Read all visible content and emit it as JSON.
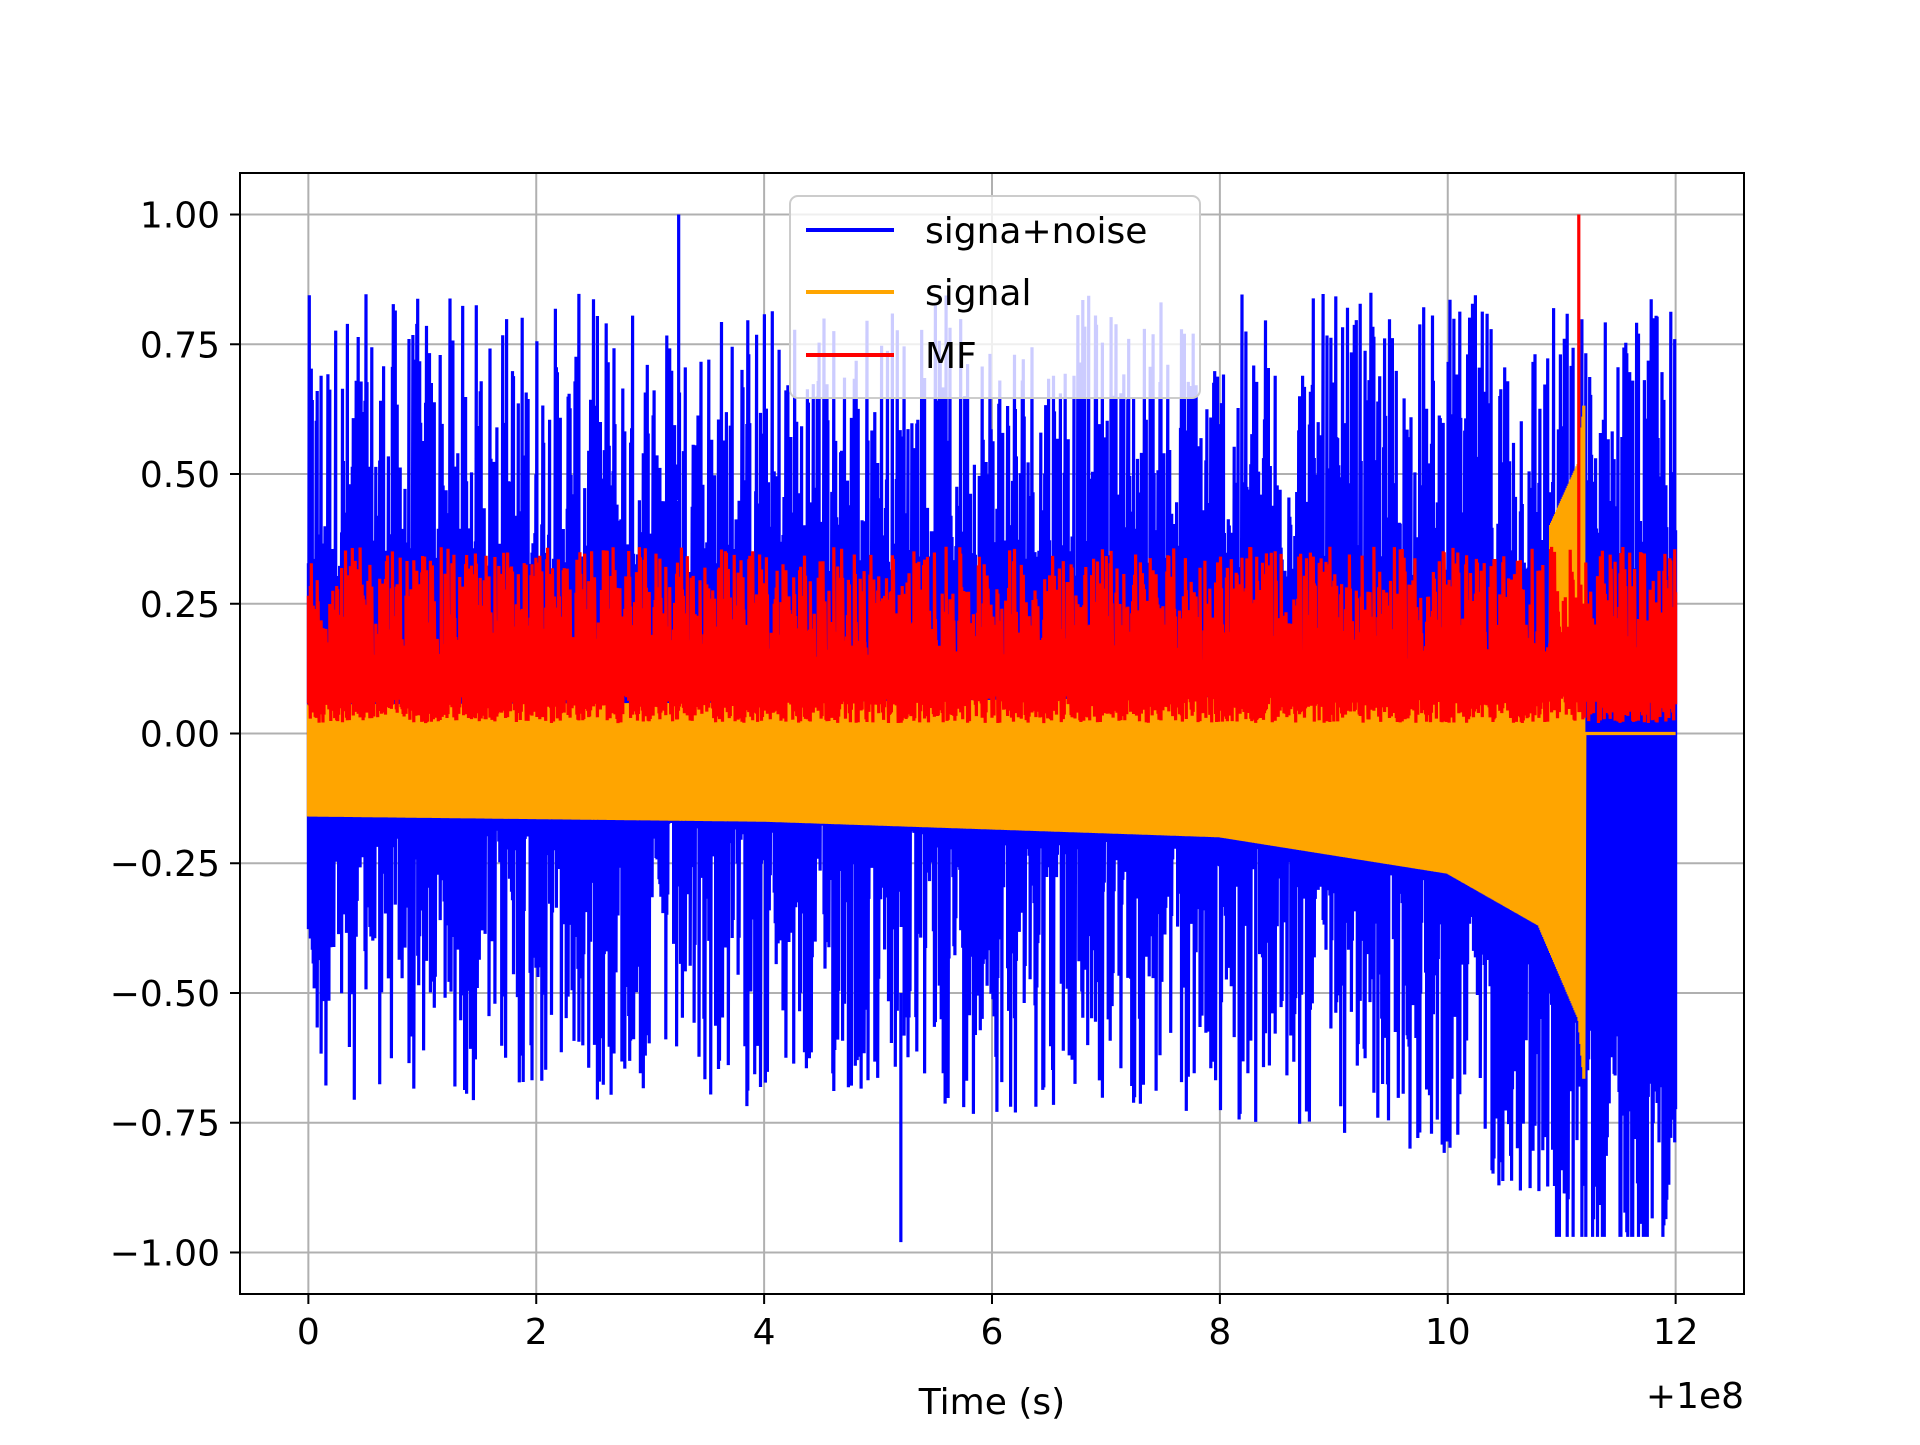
{
  "chart_data": {
    "type": "line",
    "title": "",
    "xlabel": "Time (s)",
    "ylabel": "",
    "x_offset_label": "+1e8",
    "xlim": [
      -0.6,
      12.6
    ],
    "ylim": [
      -1.08,
      1.08
    ],
    "xticks": [
      0,
      2,
      4,
      6,
      8,
      10,
      12
    ],
    "xtick_labels": [
      "0",
      "2",
      "4",
      "6",
      "8",
      "10",
      "12"
    ],
    "yticks": [
      -1.0,
      -0.75,
      -0.5,
      -0.25,
      0.0,
      0.25,
      0.5,
      0.75,
      1.0
    ],
    "ytick_labels": [
      "−1.00",
      "−0.75",
      "−0.50",
      "−0.25",
      "0.00",
      "0.25",
      "0.50",
      "0.75",
      "1.00"
    ],
    "grid": true,
    "legend_position": "top-center",
    "series": [
      {
        "name": "signa+noise",
        "color": "#0000ff",
        "x_range": [
          0,
          12.0
        ],
        "peak": {
          "x": 3.25,
          "y": 1.0
        },
        "upper_typical": [
          0.3,
          0.6
        ],
        "lower_envelope": [
          [
            0,
            -0.16
          ],
          [
            6,
            -0.18
          ],
          [
            9,
            -0.22
          ],
          [
            10.5,
            -0.32
          ],
          [
            11.2,
            -0.55
          ]
        ],
        "min": {
          "x": 5.2,
          "y": -0.98
        }
      },
      {
        "name": "signal",
        "color": "#ffa500",
        "chirp_end": 11.2,
        "amplitude": [
          [
            0,
            0.16
          ],
          [
            4,
            0.17
          ],
          [
            8,
            0.2
          ],
          [
            10,
            0.27
          ],
          [
            10.8,
            0.37
          ],
          [
            11.15,
            0.55
          ],
          [
            11.2,
            0.68
          ]
        ],
        "after_merger": 0.0
      },
      {
        "name": "MF",
        "color": "#ff0000",
        "baseline": [
          0.0,
          0.3
        ],
        "peak": {
          "x": 11.15,
          "y": 1.0
        }
      }
    ]
  }
}
